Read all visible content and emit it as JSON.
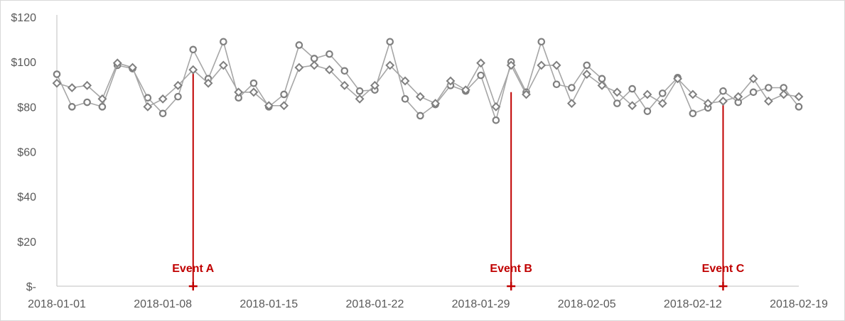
{
  "chart_data": {
    "type": "line",
    "x": [
      "2018-01-01",
      "2018-01-02",
      "2018-01-03",
      "2018-01-04",
      "2018-01-05",
      "2018-01-06",
      "2018-01-07",
      "2018-01-08",
      "2018-01-09",
      "2018-01-10",
      "2018-01-11",
      "2018-01-12",
      "2018-01-13",
      "2018-01-14",
      "2018-01-15",
      "2018-01-16",
      "2018-01-17",
      "2018-01-18",
      "2018-01-19",
      "2018-01-20",
      "2018-01-21",
      "2018-01-22",
      "2018-01-23",
      "2018-01-24",
      "2018-01-25",
      "2018-01-26",
      "2018-01-27",
      "2018-01-28",
      "2018-01-29",
      "2018-01-30",
      "2018-01-31",
      "2018-02-01",
      "2018-02-02",
      "2018-02-03",
      "2018-02-04",
      "2018-02-05",
      "2018-02-06",
      "2018-02-07",
      "2018-02-08",
      "2018-02-09",
      "2018-02-10",
      "2018-02-11",
      "2018-02-12",
      "2018-02-13",
      "2018-02-14",
      "2018-02-15",
      "2018-02-16",
      "2018-02-17",
      "2018-02-18",
      "2018-02-19"
    ],
    "series": [
      {
        "marker": "circle",
        "values": [
          94.5,
          80,
          82,
          80,
          98.5,
          97,
          84,
          77,
          84.5,
          105.5,
          92.5,
          109,
          84,
          90.5,
          80,
          85.5,
          107.5,
          101.5,
          103.5,
          96,
          87,
          87.5,
          109,
          83.5,
          76,
          81,
          89.5,
          87,
          94,
          74,
          100,
          86.5,
          109,
          90,
          88.5,
          98.5,
          92.5,
          81.5,
          88,
          78,
          86,
          93,
          77,
          79.5,
          87,
          82,
          86.5,
          88.5,
          88.5,
          80
        ]
      },
      {
        "marker": "diamond",
        "values": [
          90.5,
          88.5,
          89.5,
          83.5,
          99.5,
          97.5,
          80,
          83.5,
          89.5,
          96.5,
          90.5,
          98.5,
          86.5,
          86.5,
          80.5,
          80.5,
          97.5,
          98.5,
          96.5,
          89.5,
          83.5,
          89.5,
          98.5,
          91.5,
          84.5,
          81.5,
          91.5,
          87.5,
          99.5,
          80,
          98.5,
          85.5,
          98.5,
          98.5,
          81.5,
          94.5,
          89.5,
          86.5,
          80.5,
          85.5,
          81.5,
          92.5,
          85.5,
          81.5,
          82.5,
          84.5,
          92.5,
          82.5,
          85.5,
          84.5
        ]
      }
    ],
    "y_tick_labels": [
      "$-",
      "$20",
      "$40",
      "$60",
      "$80",
      "$100",
      "$120"
    ],
    "y_ticks": [
      0,
      20,
      40,
      60,
      80,
      100,
      120
    ],
    "x_tick_labels": [
      "2018-01-01",
      "2018-01-08",
      "2018-01-15",
      "2018-01-22",
      "2018-01-29",
      "2018-02-05",
      "2018-02-12",
      "2018-02-19"
    ],
    "ylim": [
      0,
      120
    ],
    "events": [
      {
        "label": "Event A",
        "x": "2018-01-10",
        "y": 96.5
      },
      {
        "label": "Event B",
        "x": "2018-01-31",
        "y": 86.5
      },
      {
        "label": "Event C",
        "x": "2018-02-14",
        "y": 82
      }
    ],
    "grid": false,
    "legend": "none",
    "colors": {
      "series": "#a6a6a6",
      "marker": "#7f7f7f",
      "event": "#c00000",
      "axis": "#bfbfbf",
      "text": "#595959"
    }
  }
}
